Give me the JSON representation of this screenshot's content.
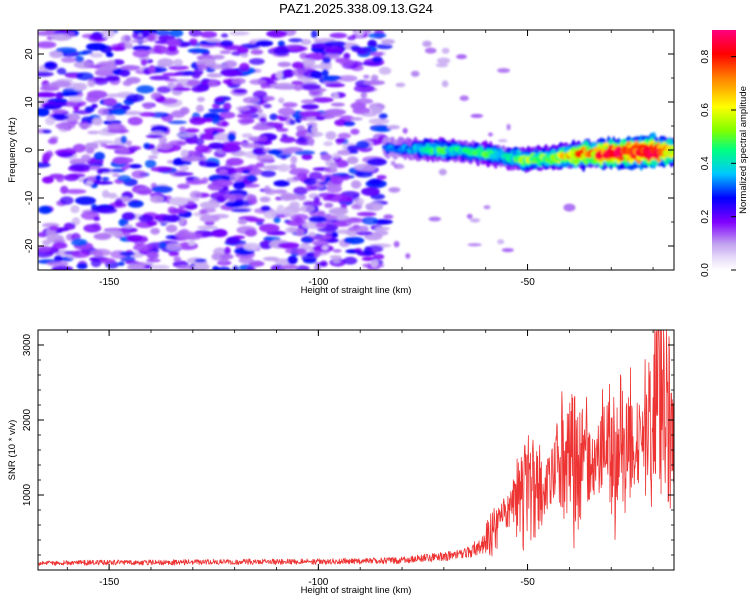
{
  "chart_data": [
    {
      "type": "heatmap",
      "title": "PAZ1.2025.338.09.13.G24",
      "xlabel": "Height of straight line (km)",
      "ylabel": "Frequency (Hz)",
      "xlim": [
        -167,
        -15
      ],
      "ylim": [
        -25,
        25
      ],
      "x_ticks": [
        -150,
        -100,
        -50
      ],
      "x_tick_labels": [
        "-150",
        "-100",
        "-50"
      ],
      "y_ticks": [
        -20,
        -10,
        0,
        10,
        20
      ],
      "y_tick_labels": [
        "-20",
        "-10",
        "0",
        "10",
        "20"
      ],
      "colorbar": {
        "label": "Normalized spectral amplitude",
        "range": [
          0.0,
          0.9
        ],
        "ticks": [
          0.0,
          0.2,
          0.4,
          0.6,
          0.8
        ],
        "tick_labels": [
          "0.0",
          "0.2",
          "0.4",
          "0.6",
          "0.8"
        ],
        "colors": [
          "#ffffff",
          "#c0a0f0",
          "#8000ff",
          "#0000ff",
          "#00c0ff",
          "#00ff80",
          "#80ff00",
          "#ffff00",
          "#ff8000",
          "#ff0000",
          "#ff0080"
        ]
      },
      "noise_region": {
        "x_range": [
          -167,
          -84
        ],
        "freq_range": [
          -25,
          25
        ],
        "typical_amplitude": 0.1
      },
      "ridge": {
        "x": [
          -84,
          -75,
          -70,
          -65,
          -60,
          -55,
          -50,
          -45,
          -40,
          -35,
          -30,
          -25,
          -20,
          -15
        ],
        "frequency": [
          0.5,
          0.2,
          0.0,
          -0.3,
          -0.8,
          -1.5,
          -2.0,
          -1.8,
          -1.2,
          -0.9,
          -0.7,
          -0.5,
          -0.4,
          -0.3
        ],
        "amplitude": [
          0.2,
          0.3,
          0.35,
          0.3,
          0.35,
          0.3,
          0.45,
          0.4,
          0.55,
          0.6,
          0.7,
          0.75,
          0.85,
          0.5
        ]
      }
    },
    {
      "type": "line",
      "xlabel": "Height of straight line (km)",
      "ylabel": "SNR (10 * v/v)",
      "xlim": [
        -167,
        -15
      ],
      "ylim": [
        0,
        3200
      ],
      "x_ticks": [
        -150,
        -100,
        -50
      ],
      "x_tick_labels": [
        "-150",
        "-100",
        "-50"
      ],
      "y_ticks": [
        1000,
        2000,
        3000
      ],
      "y_tick_labels": [
        "1000",
        "2000",
        "3000"
      ],
      "series": [
        {
          "name": "SNR",
          "color": "#ee3333",
          "x": [
            -167,
            -160,
            -150,
            -140,
            -130,
            -120,
            -110,
            -100,
            -90,
            -80,
            -70,
            -65,
            -60,
            -57,
            -55,
            -50,
            -45,
            -42,
            -40,
            -35,
            -30,
            -25,
            -22,
            -20,
            -18,
            -16,
            -15
          ],
          "y": [
            90,
            95,
            100,
            100,
            105,
            110,
            110,
            115,
            120,
            130,
            180,
            220,
            350,
            600,
            800,
            1000,
            1200,
            1500,
            1300,
            1400,
            1500,
            1600,
            1700,
            2000,
            3200,
            1800,
            1500
          ]
        }
      ]
    }
  ]
}
